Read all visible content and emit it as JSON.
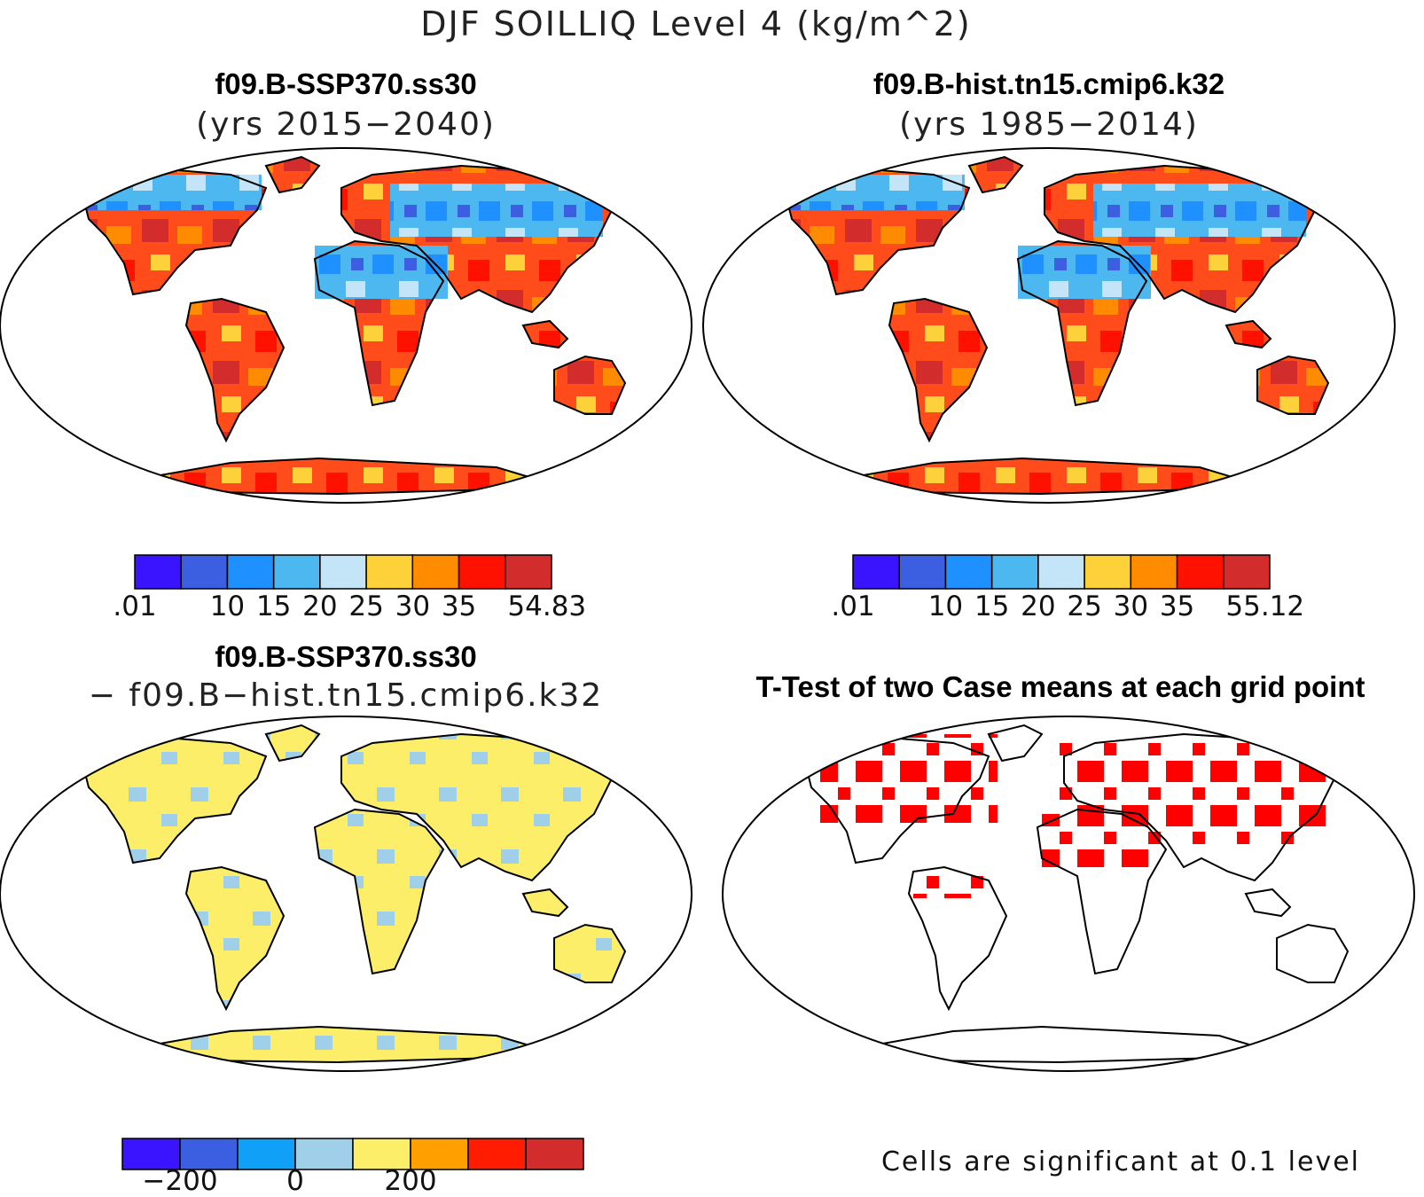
{
  "figure": {
    "title": "DJF SOILLIQ Level 4 (kg/m^2)"
  },
  "panels": [
    {
      "id": "case1",
      "title": "f09.B-SSP370.ss30",
      "subtitle": "(yrs 2015−2040)",
      "map_style": "field",
      "colorbar": {
        "colors": [
          "#3a14ff",
          "#3c5ee0",
          "#1e90ff",
          "#4db8f0",
          "#c4e4f8",
          "#fdd13a",
          "#ff8c00",
          "#ff1100",
          "#d22c2c"
        ],
        "tick_labels": [
          ".01",
          "",
          "10",
          "15",
          "20",
          "25",
          "30",
          "35",
          "54.83"
        ]
      }
    },
    {
      "id": "case2",
      "title": "f09.B-hist.tn15.cmip6.k32",
      "subtitle": "(yrs 1985−2014)",
      "map_style": "field",
      "colorbar": {
        "colors": [
          "#3a14ff",
          "#3c5ee0",
          "#1e90ff",
          "#4db8f0",
          "#c4e4f8",
          "#fdd13a",
          "#ff8c00",
          "#ff1100",
          "#d22c2c"
        ],
        "tick_labels": [
          ".01",
          "",
          "10",
          "15",
          "20",
          "25",
          "30",
          "35",
          "55.12"
        ]
      }
    },
    {
      "id": "diff",
      "title": "f09.B-SSP370.ss30",
      "subtitle": "− f09.B−hist.tn15.cmip6.k32",
      "map_style": "diff",
      "colorbar": {
        "colors": [
          "#3a14ff",
          "#3c5ee0",
          "#10a0f8",
          "#a0cfea",
          "#fdee6a",
          "#ff9f00",
          "#ff1c00",
          "#d22c2c"
        ],
        "tick_labels": [
          "",
          "−200",
          "",
          "0",
          "",
          "200",
          "",
          ""
        ]
      }
    },
    {
      "id": "ttest",
      "title": "T-Test of two Case means at each grid point",
      "subtitle": "",
      "map_style": "ttest",
      "note": "Cells are significant at 0.1 level",
      "significant_color": "#ff0000"
    }
  ]
}
